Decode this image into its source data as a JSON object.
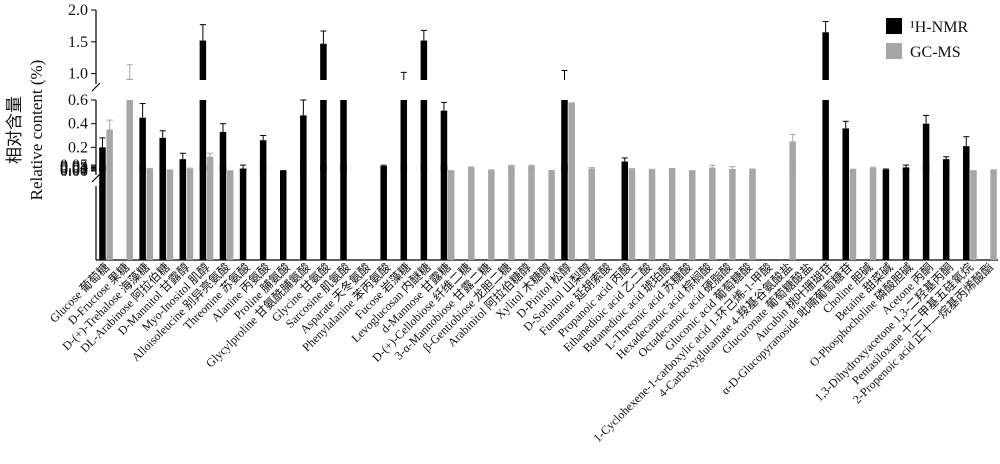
{
  "chart_data": {
    "type": "bar",
    "ylabel_cn": "相对含量",
    "ylabel_en": "Relative content (%)",
    "axis_segments": [
      {
        "range": [
          0.9,
          2.0
        ],
        "ticks": [
          1.0,
          1.5,
          2.0
        ],
        "tick_labels": [
          "1.0",
          "1.5",
          "2.0"
        ]
      },
      {
        "range": [
          0.0,
          0.6
        ],
        "ticks": [
          0.2,
          0.4,
          0.6
        ],
        "tick_labels": [
          "0.2",
          "0.4",
          "0.6"
        ]
      },
      {
        "range": [
          0.0,
          0.05
        ],
        "ticks": [
          0.0,
          0.01,
          0.02,
          0.03,
          0.04,
          0.05
        ],
        "tick_labels": [
          "0.00",
          "0.01",
          "0.02",
          "0.03",
          "0.04",
          "0.05"
        ]
      }
    ],
    "legend": [
      {
        "label": "¹H-NMR",
        "color": "#000000"
      },
      {
        "label": "GC-MS",
        "color": "#a6a6a6"
      }
    ],
    "categories": [
      "Glucose 葡萄糖",
      "D-Fructose 果糖",
      "D-(+)-Trehalose 海藻糖",
      "DL-Arabinose 阿拉伯糖",
      "D-Mannitol 甘露醇",
      "Myo-Inositol 肌醇",
      "Alloisoleucine 别异亮氨酸",
      "Threonine 苏氨酸",
      "Alanine 丙氨酸",
      "Proline 脯氨酸",
      "Glycylproline 甘氨酰脯氨酸",
      "Glycine 甘氨酸",
      "Sarcosine 肌氨酸",
      "Asparate 天冬氨酸",
      "Phenylalanine 苯丙氨酸",
      "Fucose 岩藻糖",
      "Levoglucosan 内醚糖",
      "d-Mannose 甘露糖",
      "D-(+)-Cellobiose 纤维二糖",
      "3-α-Mannobiose 甘露二糖",
      "β-Gentiobiose 龙胆二糖",
      "Arabinitol 阿拉伯糖醇",
      "Xylitol 木糖醇",
      "D-Pinitol 松醇",
      "D-Sorbitol 山梨醇",
      "Fumarate 延胡索酸",
      "Propanoic acid 丙酸",
      "Ethanedioic acid 乙二酸",
      "Butanedioic acid 琥珀酸",
      "L-Threonic acid 苏糖酸",
      "Hexadecanoic acid 棕榈酸",
      "Octadecanoic acid 硬脂酸",
      "Gluconic acid 葡萄糖酸",
      "1-Cyclohexene-1-carboxylic acid 1-环己烯-1-甲酸",
      "4-Carboxyglutamate 4-羧基谷氨酸盐",
      "Glucuronate 葡萄糖酸盐",
      "Aucubin 桃叶珊瑚苷",
      "α-D-Glucopyranoside 吡喃葡萄糖苷",
      "Choline 胆碱",
      "Betaine 甜菜碱",
      "O-Phosphocholine 磷酸胆碱",
      "Acetone 丙酮",
      "1,3-Dihydroxyacetone 1,3-二羟基丙酮",
      "Pentasiloxane 十二甲基五硅氧烷",
      "2-Propenoic acid 正十一烷基丙烯酸酯"
    ],
    "series": [
      {
        "name": "¹H-NMR",
        "color": "#000000",
        "values": [
          0.2,
          null,
          0.45,
          0.28,
          0.1,
          1.52,
          0.33,
          0.02,
          0.26,
          0.002,
          0.47,
          1.47,
          0.76,
          0.0,
          0.041,
          0.9,
          1.52,
          0.51,
          null,
          null,
          null,
          null,
          0.0,
          0.9,
          null,
          null,
          0.08,
          null,
          null,
          null,
          null,
          null,
          null,
          null,
          null,
          null,
          1.65,
          0.36,
          null,
          0.01,
          0.03,
          0.4,
          0.1,
          0.21,
          null
        ],
        "errors": [
          0.08,
          null,
          0.12,
          0.06,
          0.05,
          0.25,
          0.07,
          0.03,
          0.04,
          0.001,
          0.13,
          0.2,
          0.06,
          0.0,
          0.008,
          0.12,
          0.16,
          0.07,
          null,
          null,
          null,
          null,
          0.0,
          0.15,
          null,
          null,
          0.03,
          null,
          null,
          null,
          null,
          null,
          null,
          null,
          null,
          null,
          0.17,
          0.06,
          null,
          0.007,
          0.02,
          0.07,
          0.02,
          0.08,
          null
        ]
      },
      {
        "name": "GC-MS",
        "color": "#a6a6a6",
        "values": [
          0.35,
          0.92,
          0.018,
          0.007,
          0.018,
          0.12,
          0.001,
          null,
          null,
          null,
          null,
          null,
          null,
          null,
          null,
          null,
          null,
          0.001,
          0.03,
          0.006,
          0.043,
          0.043,
          0.003,
          0.58,
          0.021,
          null,
          0.014,
          0.01,
          0.019,
          0.002,
          0.028,
          0.017,
          0.013,
          null,
          0.25,
          null,
          null,
          0.014,
          0.026,
          null,
          null,
          null,
          null,
          0.001,
          0.008
        ]
      },
      {
        "name": "GC-MS error",
        "color": "#a6a6a6",
        "values": [
          0.08,
          0.22,
          0.002,
          0.002,
          0.006,
          0.03,
          0.001,
          null,
          null,
          null,
          null,
          null,
          null,
          null,
          null,
          null,
          null,
          0.002,
          0.005,
          0.004,
          0.006,
          0.006,
          0.001,
          0.16,
          0.008,
          null,
          0.006,
          0.004,
          0.002,
          0.001,
          0.02,
          0.02,
          0.004,
          null,
          0.06,
          null,
          null,
          0.001,
          0.007,
          null,
          null,
          null,
          null,
          0.002,
          0.002
        ]
      }
    ]
  }
}
